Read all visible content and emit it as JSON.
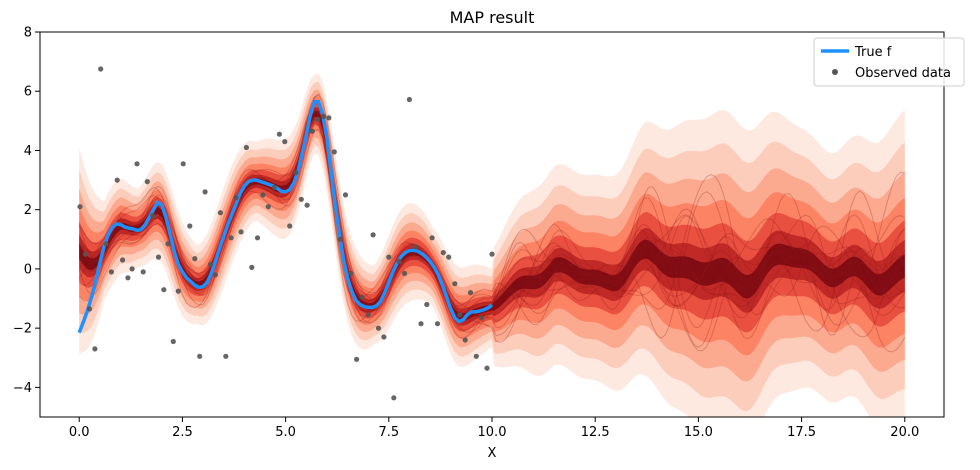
{
  "chart_data": {
    "type": "line",
    "title": "MAP result",
    "xlabel": "X",
    "ylabel": "",
    "xlim": [
      -0.95,
      20.95
    ],
    "ylim": [
      -5,
      8
    ],
    "xticks": [
      0.0,
      2.5,
      5.0,
      7.5,
      10.0,
      12.5,
      15.0,
      17.5,
      20.0
    ],
    "xtick_labels": [
      "0.0",
      "2.5",
      "5.0",
      "7.5",
      "10.0",
      "12.5",
      "15.0",
      "17.5",
      "20.0"
    ],
    "yticks": [
      -4,
      -2,
      0,
      2,
      4,
      6,
      8
    ],
    "ytick_labels": [
      "−4",
      "−2",
      "0",
      "2",
      "4",
      "6",
      "8"
    ],
    "grid": false,
    "legend": {
      "position": "top-right",
      "entries": [
        {
          "label": "True f",
          "kind": "line",
          "color": "#1e90ff"
        },
        {
          "label": "Observed data",
          "kind": "marker",
          "color": "#555555"
        }
      ]
    },
    "true_f": {
      "name": "True f",
      "color": "#1e90ff",
      "x": [
        0.0,
        0.1,
        0.2,
        0.3,
        0.4,
        0.5,
        0.6,
        0.7,
        0.8,
        0.9,
        1.0,
        1.1,
        1.2,
        1.3,
        1.4,
        1.5,
        1.6,
        1.7,
        1.8,
        1.9,
        2.0,
        2.1,
        2.2,
        2.3,
        2.4,
        2.5,
        2.6,
        2.7,
        2.8,
        2.9,
        3.0,
        3.1,
        3.2,
        3.3,
        3.4,
        3.5,
        3.6,
        3.7,
        3.8,
        3.9,
        4.0,
        4.1,
        4.2,
        4.3,
        4.4,
        4.5,
        4.6,
        4.7,
        4.8,
        4.9,
        5.0,
        5.1,
        5.2,
        5.3,
        5.4,
        5.5,
        5.6,
        5.7,
        5.8,
        5.9,
        6.0,
        6.1,
        6.2,
        6.3,
        6.4,
        6.5,
        6.6,
        6.7,
        6.8,
        6.9,
        7.0,
        7.1,
        7.2,
        7.3,
        7.4,
        7.5,
        7.6,
        7.7,
        7.8,
        7.9,
        8.0,
        8.1,
        8.2,
        8.3,
        8.4,
        8.5,
        8.6,
        8.7,
        8.8,
        8.9,
        9.0,
        9.1,
        9.2,
        9.3,
        9.4,
        9.5,
        9.6,
        9.7,
        9.8,
        9.9,
        10.0
      ],
      "y": [
        -2.15,
        -1.8,
        -1.4,
        -0.95,
        -0.4,
        0.2,
        0.75,
        1.15,
        1.4,
        1.52,
        1.5,
        1.42,
        1.38,
        1.35,
        1.3,
        1.33,
        1.5,
        1.75,
        2.0,
        2.25,
        2.15,
        1.75,
        1.2,
        0.6,
        0.15,
        -0.1,
        -0.3,
        -0.42,
        -0.55,
        -0.62,
        -0.6,
        -0.45,
        -0.15,
        0.25,
        0.7,
        1.1,
        1.5,
        1.85,
        2.2,
        2.55,
        2.8,
        2.95,
        3.0,
        3.0,
        2.95,
        2.9,
        2.85,
        2.8,
        2.72,
        2.62,
        2.6,
        2.68,
        2.9,
        3.3,
        3.9,
        4.5,
        5.2,
        5.65,
        5.65,
        5.2,
        4.4,
        3.3,
        2.2,
        1.2,
        0.35,
        -0.3,
        -0.75,
        -1.05,
        -1.2,
        -1.27,
        -1.3,
        -1.3,
        -1.25,
        -1.1,
        -0.8,
        -0.45,
        -0.1,
        0.2,
        0.42,
        0.55,
        0.62,
        0.63,
        0.6,
        0.52,
        0.4,
        0.25,
        0.05,
        -0.2,
        -0.55,
        -0.95,
        -1.35,
        -1.65,
        -1.78,
        -1.72,
        -1.55,
        -1.45,
        -1.45,
        -1.42,
        -1.38,
        -1.32,
        -1.22
      ]
    },
    "observed": {
      "name": "Observed data",
      "color": "#555555",
      "x": [
        0.02,
        0.15,
        0.25,
        0.38,
        0.52,
        0.65,
        0.78,
        0.92,
        1.05,
        1.18,
        1.28,
        1.4,
        1.55,
        1.65,
        1.78,
        1.92,
        2.05,
        2.15,
        2.28,
        2.4,
        2.52,
        2.68,
        2.8,
        2.92,
        3.05,
        3.18,
        3.3,
        3.42,
        3.55,
        3.68,
        3.8,
        3.92,
        4.05,
        4.18,
        4.32,
        4.45,
        4.58,
        4.72,
        4.85,
        4.98,
        5.1,
        5.25,
        5.38,
        5.52,
        5.65,
        5.78,
        5.92,
        6.05,
        6.18,
        6.32,
        6.45,
        6.58,
        6.72,
        6.85,
        7.0,
        7.12,
        7.25,
        7.38,
        7.5,
        7.62,
        7.75,
        7.88,
        8.0,
        8.15,
        8.28,
        8.42,
        8.55,
        8.68,
        8.82,
        8.95,
        9.1,
        9.22,
        9.35,
        9.48,
        9.62,
        9.75,
        9.88,
        10.0
      ],
      "y": [
        2.1,
        0.5,
        -1.35,
        -2.7,
        6.75,
        0.85,
        -0.1,
        3.0,
        0.3,
        -0.3,
        0.0,
        3.55,
        -0.1,
        2.95,
        1.8,
        0.4,
        -0.7,
        0.85,
        -2.45,
        -0.75,
        3.55,
        1.45,
        0.35,
        -2.95,
        2.6,
        0.15,
        -0.2,
        1.9,
        -2.95,
        1.05,
        2.4,
        1.25,
        4.1,
        0.05,
        1.05,
        2.5,
        2.1,
        2.75,
        4.55,
        4.3,
        1.45,
        3.25,
        2.35,
        2.15,
        4.65,
        5.05,
        5.15,
        5.1,
        3.95,
        1.0,
        2.5,
        -0.15,
        -3.05,
        -0.95,
        -1.55,
        1.15,
        -2.0,
        -2.3,
        0.4,
        -4.35,
        0.25,
        -0.15,
        5.72,
        0.75,
        -1.85,
        -1.2,
        1.05,
        -1.85,
        0.55,
        0.4,
        -0.5,
        -1.55,
        -2.4,
        -0.8,
        -2.95,
        -1.65,
        -3.35,
        0.5
      ]
    }
  }
}
